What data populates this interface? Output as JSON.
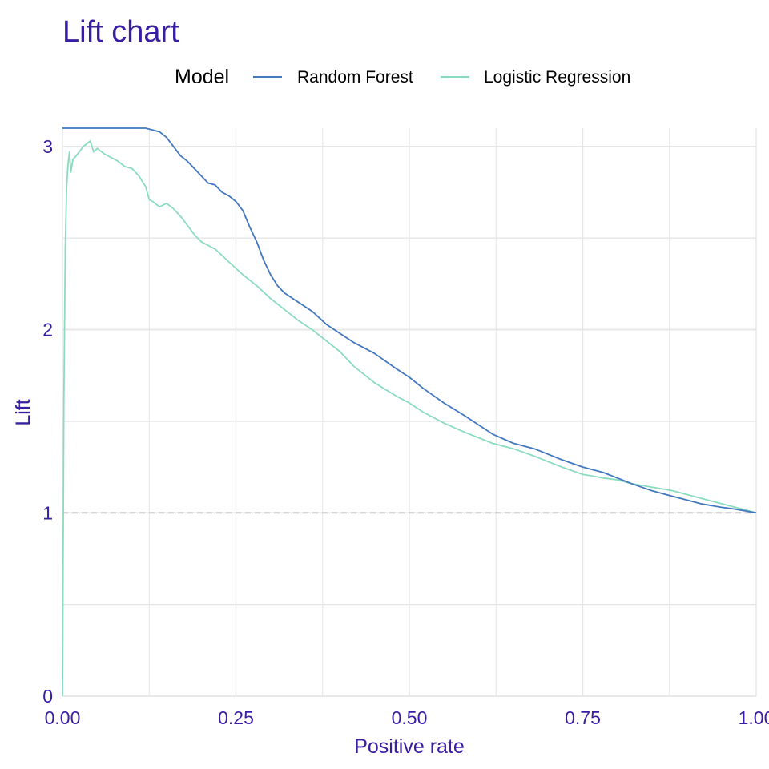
{
  "chart_data": {
    "type": "line",
    "title": "Lift chart",
    "xlabel": "Positive rate",
    "ylabel": "Lift",
    "xlim": [
      0,
      1
    ],
    "ylim": [
      0,
      3.1
    ],
    "x_ticks": [
      0,
      0.25,
      0.5,
      0.75,
      1.0
    ],
    "x_tick_labels": [
      "0.00",
      "0.25",
      "0.50",
      "0.75",
      "1.00"
    ],
    "y_ticks": [
      0,
      1,
      2,
      3
    ],
    "y_tick_labels": [
      "0",
      "1",
      "2",
      "3"
    ],
    "y_minor_ticks": [
      0.5,
      1.5,
      2.5
    ],
    "x_minor_ticks": [
      0.125,
      0.375,
      0.625,
      0.875
    ],
    "grid": true,
    "legend": {
      "title": "Model",
      "position": "top"
    },
    "reference_line": {
      "y": 1,
      "style": "dashed",
      "color": "#b5b5b5"
    },
    "colors": {
      "title": "#371ea3",
      "axis_text": "#371ea3",
      "grid": "#e6e6e6"
    },
    "series": [
      {
        "name": "Random Forest",
        "color": "#4378bf",
        "x": [
          0.0,
          0.005,
          0.02,
          0.05,
          0.08,
          0.1,
          0.12,
          0.13,
          0.14,
          0.15,
          0.16,
          0.17,
          0.18,
          0.19,
          0.2,
          0.21,
          0.22,
          0.23,
          0.24,
          0.25,
          0.26,
          0.27,
          0.28,
          0.29,
          0.3,
          0.31,
          0.32,
          0.34,
          0.36,
          0.38,
          0.4,
          0.42,
          0.45,
          0.48,
          0.5,
          0.52,
          0.55,
          0.58,
          0.6,
          0.62,
          0.65,
          0.68,
          0.7,
          0.72,
          0.75,
          0.78,
          0.8,
          0.82,
          0.85,
          0.88,
          0.9,
          0.92,
          0.95,
          0.97,
          1.0
        ],
        "y": [
          3.1,
          3.1,
          3.1,
          3.1,
          3.1,
          3.1,
          3.1,
          3.09,
          3.08,
          3.05,
          3.0,
          2.95,
          2.92,
          2.88,
          2.84,
          2.8,
          2.79,
          2.75,
          2.73,
          2.7,
          2.65,
          2.56,
          2.48,
          2.38,
          2.3,
          2.24,
          2.2,
          2.15,
          2.1,
          2.03,
          1.98,
          1.93,
          1.87,
          1.79,
          1.74,
          1.68,
          1.6,
          1.53,
          1.48,
          1.43,
          1.38,
          1.35,
          1.32,
          1.29,
          1.25,
          1.22,
          1.19,
          1.16,
          1.12,
          1.09,
          1.07,
          1.05,
          1.03,
          1.02,
          1.0
        ]
      },
      {
        "name": "Logistic Regression",
        "color": "#8bdcbe",
        "x": [
          0.0,
          0.002,
          0.004,
          0.006,
          0.008,
          0.01,
          0.012,
          0.015,
          0.02,
          0.03,
          0.04,
          0.045,
          0.05,
          0.06,
          0.07,
          0.08,
          0.09,
          0.1,
          0.11,
          0.12,
          0.125,
          0.13,
          0.14,
          0.15,
          0.16,
          0.17,
          0.18,
          0.19,
          0.2,
          0.22,
          0.24,
          0.26,
          0.28,
          0.3,
          0.32,
          0.34,
          0.36,
          0.38,
          0.4,
          0.42,
          0.45,
          0.48,
          0.5,
          0.52,
          0.55,
          0.58,
          0.6,
          0.62,
          0.65,
          0.68,
          0.7,
          0.72,
          0.75,
          0.78,
          0.8,
          0.82,
          0.85,
          0.88,
          0.9,
          0.92,
          0.95,
          0.97,
          1.0
        ],
        "y": [
          0.0,
          1.6,
          2.45,
          2.78,
          2.9,
          2.97,
          2.86,
          2.93,
          2.95,
          3.0,
          3.03,
          2.97,
          2.99,
          2.96,
          2.94,
          2.92,
          2.89,
          2.88,
          2.84,
          2.78,
          2.71,
          2.7,
          2.67,
          2.69,
          2.66,
          2.62,
          2.57,
          2.52,
          2.48,
          2.44,
          2.37,
          2.3,
          2.24,
          2.17,
          2.11,
          2.05,
          2.0,
          1.94,
          1.88,
          1.8,
          1.71,
          1.64,
          1.6,
          1.55,
          1.49,
          1.44,
          1.41,
          1.38,
          1.35,
          1.31,
          1.28,
          1.25,
          1.21,
          1.19,
          1.18,
          1.16,
          1.14,
          1.12,
          1.1,
          1.08,
          1.05,
          1.03,
          1.0
        ]
      }
    ]
  }
}
